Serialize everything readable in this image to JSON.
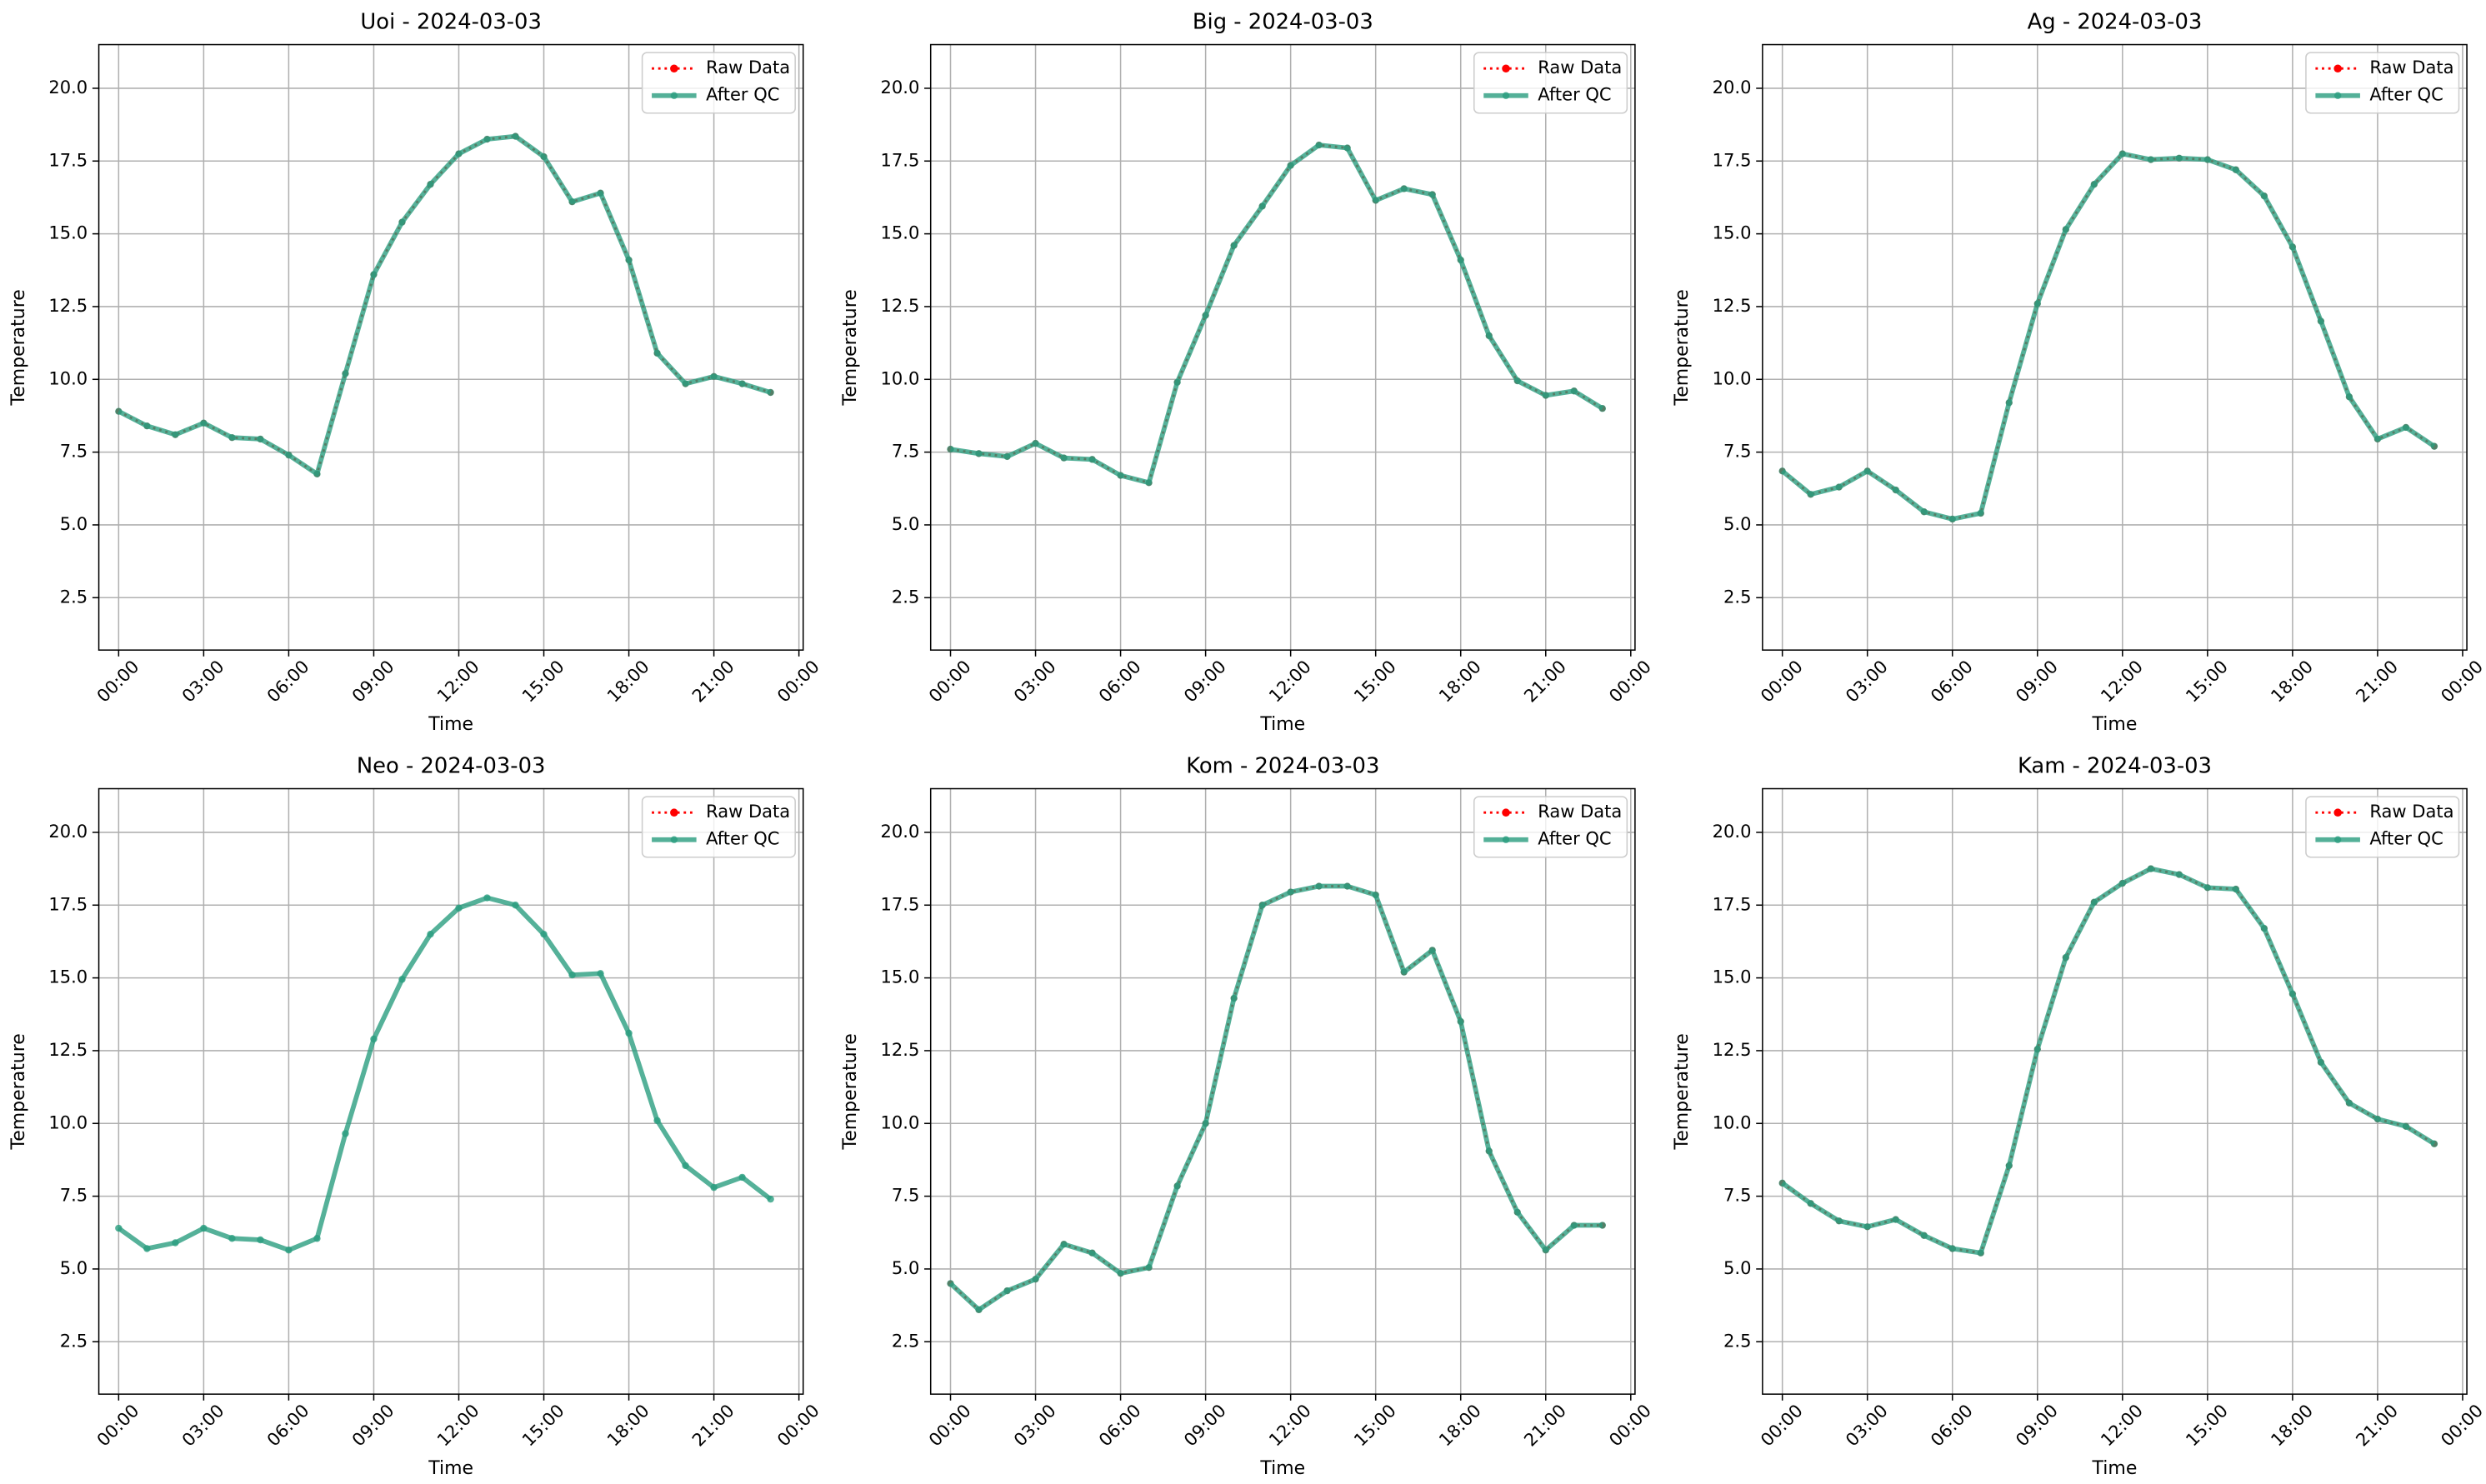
{
  "chart_data": [
    {
      "type": "line",
      "title": "Uoi - 2024-03-03",
      "xlabel": "Time",
      "ylabel": "Temperature",
      "x": [
        0,
        1,
        2,
        3,
        4,
        5,
        6,
        7,
        8,
        9,
        10,
        11,
        12,
        13,
        14,
        15,
        16,
        17,
        18,
        19,
        20,
        21,
        22,
        23
      ],
      "xlim": [
        -0.7,
        24.15
      ],
      "xticks": [
        {
          "value": 0,
          "label": "00:00"
        },
        {
          "value": 3,
          "label": "03:00"
        },
        {
          "value": 6,
          "label": "06:00"
        },
        {
          "value": 9,
          "label": "09:00"
        },
        {
          "value": 12,
          "label": "12:00"
        },
        {
          "value": 15,
          "label": "15:00"
        },
        {
          "value": 18,
          "label": "18:00"
        },
        {
          "value": 21,
          "label": "21:00"
        },
        {
          "value": 24,
          "label": "00:00"
        }
      ],
      "ylim": [
        0.7,
        21.5
      ],
      "yticks": [
        2.5,
        {
          "value": 5,
          "label": "5.0"
        },
        7.5,
        {
          "value": 10,
          "label": "10.0"
        },
        12.5,
        {
          "value": 15,
          "label": "15.0"
        },
        17.5,
        {
          "value": 20,
          "label": "20.0"
        }
      ],
      "grid": true,
      "legend": "upper right",
      "series": [
        {
          "name": "Raw Data",
          "color": "#ff0000",
          "values": [
            8.9,
            8.4,
            8.1,
            8.5,
            8.0,
            7.95,
            7.4,
            6.75,
            10.2,
            13.6,
            15.4,
            16.7,
            17.75,
            18.25,
            18.35,
            17.65,
            16.1,
            16.4,
            14.1,
            10.9,
            9.85,
            10.1,
            9.85,
            9.55
          ]
        },
        {
          "name": "After QC",
          "color": "#2a9d7f",
          "values": [
            8.9,
            8.4,
            8.1,
            8.5,
            8.0,
            7.95,
            7.4,
            6.75,
            10.2,
            13.6,
            15.4,
            16.7,
            17.75,
            18.25,
            18.35,
            17.65,
            16.1,
            16.4,
            14.1,
            10.9,
            9.85,
            10.1,
            9.85,
            9.55
          ]
        }
      ]
    },
    {
      "type": "line",
      "title": "Big - 2024-03-03",
      "xlabel": "Time",
      "ylabel": "Temperature",
      "x": [
        0,
        1,
        2,
        3,
        4,
        5,
        6,
        7,
        8,
        9,
        10,
        11,
        12,
        13,
        14,
        15,
        16,
        17,
        18,
        19,
        20,
        21,
        22,
        23
      ],
      "xlim": [
        -0.7,
        24.15
      ],
      "xticks": [
        {
          "value": 0,
          "label": "00:00"
        },
        {
          "value": 3,
          "label": "03:00"
        },
        {
          "value": 6,
          "label": "06:00"
        },
        {
          "value": 9,
          "label": "09:00"
        },
        {
          "value": 12,
          "label": "12:00"
        },
        {
          "value": 15,
          "label": "15:00"
        },
        {
          "value": 18,
          "label": "18:00"
        },
        {
          "value": 21,
          "label": "21:00"
        },
        {
          "value": 24,
          "label": "00:00"
        }
      ],
      "ylim": [
        0.7,
        21.5
      ],
      "yticks": [
        2.5,
        {
          "value": 5,
          "label": "5.0"
        },
        7.5,
        {
          "value": 10,
          "label": "10.0"
        },
        12.5,
        {
          "value": 15,
          "label": "15.0"
        },
        17.5,
        {
          "value": 20,
          "label": "20.0"
        }
      ],
      "grid": true,
      "legend": "upper right",
      "series": [
        {
          "name": "Raw Data",
          "color": "#ff0000",
          "values": [
            7.6,
            7.45,
            7.35,
            7.8,
            7.3,
            7.25,
            6.7,
            6.45,
            9.9,
            12.2,
            14.6,
            15.95,
            17.35,
            18.05,
            17.95,
            16.15,
            16.55,
            16.35,
            14.1,
            11.5,
            9.95,
            9.45,
            9.6,
            9.0
          ]
        },
        {
          "name": "After QC",
          "color": "#2a9d7f",
          "values": [
            7.6,
            7.45,
            7.35,
            7.8,
            7.3,
            7.25,
            6.7,
            6.45,
            9.9,
            12.2,
            14.6,
            15.95,
            17.35,
            18.05,
            17.95,
            16.15,
            16.55,
            16.35,
            14.1,
            11.5,
            9.95,
            9.45,
            9.6,
            9.0
          ]
        }
      ]
    },
    {
      "type": "line",
      "title": "Ag - 2024-03-03",
      "xlabel": "Time",
      "ylabel": "Temperature",
      "x": [
        0,
        1,
        2,
        3,
        4,
        5,
        6,
        7,
        8,
        9,
        10,
        11,
        12,
        13,
        14,
        15,
        16,
        17,
        18,
        19,
        20,
        21,
        22,
        23
      ],
      "xlim": [
        -0.7,
        24.15
      ],
      "xticks": [
        {
          "value": 0,
          "label": "00:00"
        },
        {
          "value": 3,
          "label": "03:00"
        },
        {
          "value": 6,
          "label": "06:00"
        },
        {
          "value": 9,
          "label": "09:00"
        },
        {
          "value": 12,
          "label": "12:00"
        },
        {
          "value": 15,
          "label": "15:00"
        },
        {
          "value": 18,
          "label": "18:00"
        },
        {
          "value": 21,
          "label": "21:00"
        },
        {
          "value": 24,
          "label": "00:00"
        }
      ],
      "ylim": [
        0.7,
        21.5
      ],
      "yticks": [
        2.5,
        {
          "value": 5,
          "label": "5.0"
        },
        7.5,
        {
          "value": 10,
          "label": "10.0"
        },
        12.5,
        {
          "value": 15,
          "label": "15.0"
        },
        17.5,
        {
          "value": 20,
          "label": "20.0"
        }
      ],
      "grid": true,
      "legend": "upper right",
      "series": [
        {
          "name": "Raw Data",
          "color": "#ff0000",
          "values": [
            6.85,
            6.05,
            6.3,
            6.85,
            6.2,
            5.45,
            5.2,
            5.4,
            9.2,
            12.6,
            15.15,
            16.7,
            17.75,
            17.55,
            17.6,
            17.55,
            17.2,
            16.3,
            14.55,
            12.0,
            9.4,
            7.95,
            8.35,
            7.7
          ]
        },
        {
          "name": "After QC",
          "color": "#2a9d7f",
          "values": [
            6.85,
            6.05,
            6.3,
            6.85,
            6.2,
            5.45,
            5.2,
            5.4,
            9.2,
            12.6,
            15.15,
            16.7,
            17.75,
            17.55,
            17.6,
            17.55,
            17.2,
            16.3,
            14.55,
            12.0,
            9.4,
            7.95,
            8.35,
            7.7
          ]
        }
      ]
    },
    {
      "type": "line",
      "title": "Neo - 2024-03-03",
      "xlabel": "Time",
      "ylabel": "Temperature",
      "x": [
        0,
        1,
        2,
        3,
        4,
        5,
        6,
        7,
        8,
        9,
        10,
        11,
        12,
        13,
        14,
        15,
        16,
        17,
        18,
        19,
        20,
        21,
        22,
        23
      ],
      "xlim": [
        -0.7,
        24.15
      ],
      "xticks": [
        {
          "value": 0,
          "label": "00:00"
        },
        {
          "value": 3,
          "label": "03:00"
        },
        {
          "value": 6,
          "label": "06:00"
        },
        {
          "value": 9,
          "label": "09:00"
        },
        {
          "value": 12,
          "label": "12:00"
        },
        {
          "value": 15,
          "label": "15:00"
        },
        {
          "value": 18,
          "label": "18:00"
        },
        {
          "value": 21,
          "label": "21:00"
        },
        {
          "value": 24,
          "label": "00:00"
        }
      ],
      "ylim": [
        0.7,
        21.5
      ],
      "yticks": [
        2.5,
        {
          "value": 5,
          "label": "5.0"
        },
        7.5,
        {
          "value": 10,
          "label": "10.0"
        },
        12.5,
        {
          "value": 15,
          "label": "15.0"
        },
        17.5,
        {
          "value": 20,
          "label": "20.0"
        }
      ],
      "grid": true,
      "legend": "upper right",
      "series": [
        {
          "name": "Raw Data",
          "color": "#ff0000",
          "values": [
            null,
            null,
            null,
            null,
            null,
            null,
            null,
            null,
            null,
            null,
            null,
            null,
            null,
            null,
            null,
            null,
            null,
            null,
            null,
            null,
            null,
            null,
            null,
            null
          ]
        },
        {
          "name": "After QC",
          "color": "#2a9d7f",
          "values": [
            6.4,
            5.7,
            5.9,
            6.4,
            6.05,
            6.0,
            5.65,
            6.05,
            9.65,
            12.9,
            14.95,
            16.5,
            17.4,
            17.75,
            17.5,
            16.5,
            15.1,
            15.15,
            13.1,
            10.1,
            8.55,
            7.8,
            8.15,
            7.4
          ]
        }
      ]
    },
    {
      "type": "line",
      "title": "Kom - 2024-03-03",
      "xlabel": "Time",
      "ylabel": "Temperature",
      "x": [
        0,
        1,
        2,
        3,
        4,
        5,
        6,
        7,
        8,
        9,
        10,
        11,
        12,
        13,
        14,
        15,
        16,
        17,
        18,
        19,
        20,
        21,
        22,
        23
      ],
      "xlim": [
        -0.7,
        24.15
      ],
      "xticks": [
        {
          "value": 0,
          "label": "00:00"
        },
        {
          "value": 3,
          "label": "03:00"
        },
        {
          "value": 6,
          "label": "06:00"
        },
        {
          "value": 9,
          "label": "09:00"
        },
        {
          "value": 12,
          "label": "12:00"
        },
        {
          "value": 15,
          "label": "15:00"
        },
        {
          "value": 18,
          "label": "18:00"
        },
        {
          "value": 21,
          "label": "21:00"
        },
        {
          "value": 24,
          "label": "00:00"
        }
      ],
      "ylim": [
        0.7,
        21.5
      ],
      "yticks": [
        2.5,
        {
          "value": 5,
          "label": "5.0"
        },
        7.5,
        {
          "value": 10,
          "label": "10.0"
        },
        12.5,
        {
          "value": 15,
          "label": "15.0"
        },
        17.5,
        {
          "value": 20,
          "label": "20.0"
        }
      ],
      "grid": true,
      "legend": "upper right",
      "series": [
        {
          "name": "Raw Data",
          "color": "#ff0000",
          "values": [
            4.5,
            3.6,
            4.25,
            4.65,
            5.85,
            5.55,
            4.85,
            5.05,
            7.85,
            10.0,
            14.3,
            17.5,
            17.95,
            18.15,
            18.15,
            17.85,
            15.2,
            15.95,
            13.5,
            9.05,
            6.95,
            5.65,
            6.5,
            6.5
          ]
        },
        {
          "name": "After QC",
          "color": "#2a9d7f",
          "values": [
            4.5,
            3.6,
            4.25,
            4.65,
            5.85,
            5.55,
            4.85,
            5.05,
            7.85,
            10.0,
            14.3,
            17.5,
            17.95,
            18.15,
            18.15,
            17.85,
            15.2,
            15.95,
            13.5,
            9.05,
            6.95,
            5.65,
            6.5,
            6.5
          ]
        }
      ]
    },
    {
      "type": "line",
      "title": "Kam - 2024-03-03",
      "xlabel": "Time",
      "ylabel": "Temperature",
      "x": [
        0,
        1,
        2,
        3,
        4,
        5,
        6,
        7,
        8,
        9,
        10,
        11,
        12,
        13,
        14,
        15,
        16,
        17,
        18,
        19,
        20,
        21,
        22,
        23
      ],
      "xlim": [
        -0.7,
        24.15
      ],
      "xticks": [
        {
          "value": 0,
          "label": "00:00"
        },
        {
          "value": 3,
          "label": "03:00"
        },
        {
          "value": 6,
          "label": "06:00"
        },
        {
          "value": 9,
          "label": "09:00"
        },
        {
          "value": 12,
          "label": "12:00"
        },
        {
          "value": 15,
          "label": "15:00"
        },
        {
          "value": 18,
          "label": "18:00"
        },
        {
          "value": 21,
          "label": "21:00"
        },
        {
          "value": 24,
          "label": "00:00"
        }
      ],
      "ylim": [
        0.7,
        21.5
      ],
      "yticks": [
        2.5,
        {
          "value": 5,
          "label": "5.0"
        },
        7.5,
        {
          "value": 10,
          "label": "10.0"
        },
        12.5,
        {
          "value": 15,
          "label": "15.0"
        },
        17.5,
        {
          "value": 20,
          "label": "20.0"
        }
      ],
      "grid": true,
      "legend": "upper right",
      "series": [
        {
          "name": "Raw Data",
          "color": "#ff0000",
          "values": [
            7.95,
            7.25,
            6.65,
            6.45,
            6.7,
            6.15,
            5.7,
            5.55,
            8.55,
            12.55,
            15.7,
            17.6,
            18.25,
            18.75,
            18.55,
            18.1,
            18.05,
            16.7,
            14.45,
            12.1,
            10.7,
            10.15,
            9.9,
            9.3
          ]
        },
        {
          "name": "After QC",
          "color": "#2a9d7f",
          "values": [
            7.95,
            7.25,
            6.65,
            6.45,
            6.7,
            6.15,
            5.7,
            5.55,
            8.55,
            12.55,
            15.7,
            17.6,
            18.25,
            18.75,
            18.55,
            18.1,
            18.05,
            16.7,
            14.45,
            12.1,
            10.7,
            10.15,
            9.9,
            9.3
          ]
        }
      ]
    }
  ]
}
